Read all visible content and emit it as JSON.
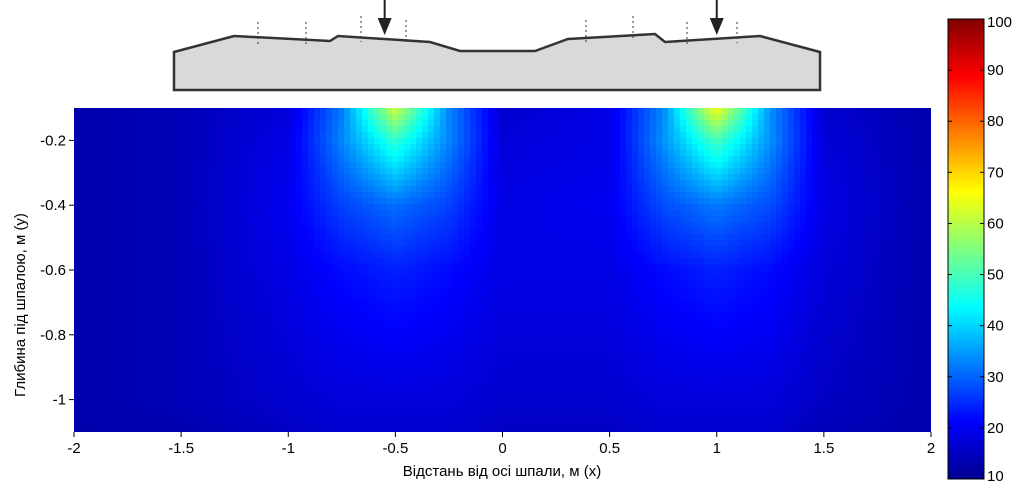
{
  "chart_data": {
    "type": "heatmap",
    "title": "",
    "xlabel": "Відстань від осі шпали, м (x)",
    "ylabel": "Глибина під шпалою, м (y)",
    "xlim": [
      -2,
      2
    ],
    "ylim": [
      -1.1,
      -0.1
    ],
    "x_ticks": [
      -2,
      -1.5,
      -1,
      -0.5,
      0,
      0.5,
      1,
      1.5,
      2
    ],
    "x_tick_labels": [
      "-2",
      "-1.5",
      "-1",
      "-0.5",
      "0",
      "0.5",
      "1",
      "1.5",
      "2"
    ],
    "y_ticks": [
      -0.2,
      -0.4,
      -0.6,
      -0.8,
      -1.0
    ],
    "y_tick_labels": [
      "-0.2",
      "-0.4",
      "-0.6",
      "-0.8",
      "-1"
    ],
    "colorbar": {
      "range": [
        10,
        100
      ],
      "ticks": [
        10,
        20,
        30,
        40,
        50,
        60,
        70,
        80,
        90,
        100
      ],
      "tick_labels": [
        "10",
        "20",
        "30",
        "40",
        "50",
        "60",
        "70",
        "80",
        "90",
        "100"
      ],
      "colormap": "jet"
    },
    "load_positions_x": [
      -0.55,
      1.0
    ],
    "x": [
      -2,
      -1.5,
      -1,
      -0.75,
      -0.5,
      -0.25,
      0,
      0.5,
      0.75,
      1,
      1.25,
      1.5,
      2
    ],
    "y": [
      -0.1,
      -0.2,
      -0.4,
      -0.6,
      -0.8,
      -1.0,
      -1.1
    ],
    "values": [
      [
        14,
        15,
        18,
        32,
        62,
        33,
        17,
        19,
        33,
        66,
        34,
        17,
        14
      ],
      [
        14,
        15,
        19,
        33,
        48,
        33,
        18,
        19,
        34,
        50,
        34,
        18,
        14
      ],
      [
        14,
        15,
        20,
        27,
        31,
        27,
        19,
        20,
        28,
        32,
        28,
        19,
        14
      ],
      [
        14,
        15,
        19,
        22,
        24,
        22,
        19,
        19,
        22,
        24,
        22,
        18,
        14
      ],
      [
        14,
        15,
        18,
        20,
        21,
        20,
        18,
        18,
        20,
        21,
        20,
        17,
        14
      ],
      [
        14,
        15,
        17,
        18,
        18,
        18,
        17,
        17,
        18,
        18,
        18,
        16,
        14
      ],
      [
        14,
        14,
        16,
        17,
        17,
        17,
        16,
        16,
        17,
        17,
        17,
        15,
        14
      ]
    ]
  },
  "colors": {
    "jet_dark_blue": "#00008f",
    "blue": "#0000ff",
    "cyan": "#00ffff",
    "yellow": "#ffff00",
    "red": "#ff0000",
    "dark_red": "#800000",
    "sleeper_fill": "#d9d9d9",
    "sleeper_stroke": "#333333"
  }
}
